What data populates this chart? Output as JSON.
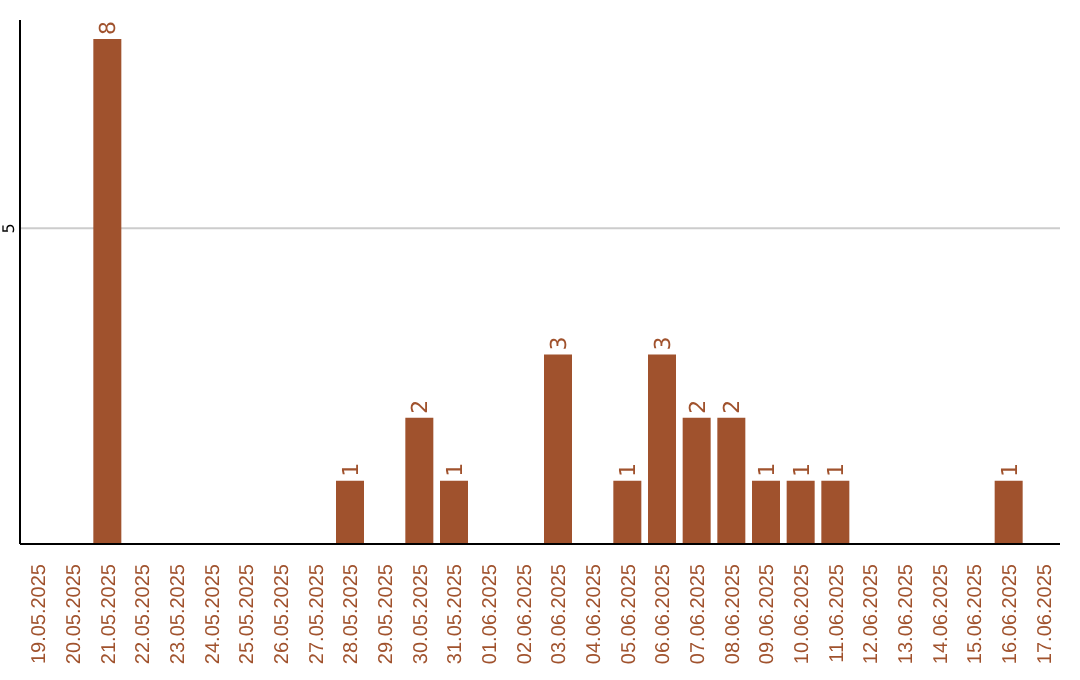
{
  "chart_data": {
    "type": "bar",
    "categories": [
      "19.05.2025",
      "20.05.2025",
      "21.05.2025",
      "22.05.2025",
      "23.05.2025",
      "24.05.2025",
      "25.05.2025",
      "26.05.2025",
      "27.05.2025",
      "28.05.2025",
      "29.05.2025",
      "30.05.2025",
      "31.05.2025",
      "01.06.2025",
      "02.06.2025",
      "03.06.2025",
      "04.06.2025",
      "05.06.2025",
      "06.06.2025",
      "07.06.2025",
      "08.06.2025",
      "09.06.2025",
      "10.06.2025",
      "11.06.2025",
      "12.06.2025",
      "13.06.2025",
      "14.06.2025",
      "15.06.2025",
      "16.06.2025",
      "17.06.2025"
    ],
    "values": [
      0,
      0,
      8,
      0,
      0,
      0,
      0,
      0,
      0,
      1,
      0,
      2,
      1,
      0,
      0,
      3,
      0,
      1,
      3,
      2,
      2,
      1,
      1,
      1,
      0,
      0,
      0,
      0,
      1,
      0
    ],
    "value_labels": [
      null,
      null,
      "8",
      null,
      null,
      null,
      null,
      null,
      null,
      "1",
      null,
      "2",
      "1",
      null,
      null,
      "3",
      null,
      "1",
      "3",
      "2",
      "2",
      "1",
      "1",
      "1",
      null,
      null,
      null,
      null,
      "1",
      null
    ],
    "color": "#a0522d",
    "ylim": [
      0,
      8.3
    ],
    "yticks": [
      5
    ],
    "grid": "y",
    "legend": false
  }
}
